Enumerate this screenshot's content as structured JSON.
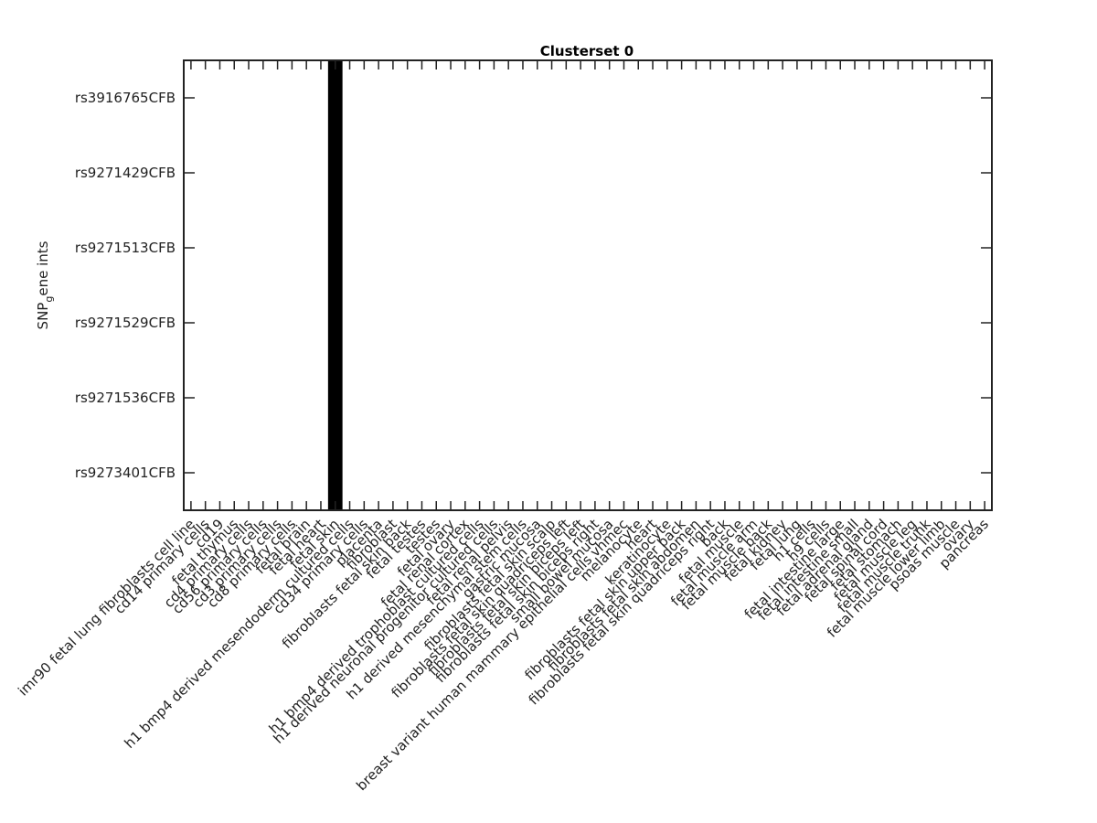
{
  "chart_data": {
    "type": "heatmap",
    "title": "Clusterset 0",
    "ylabel_parts": [
      "SNP",
      "g",
      "ene ints"
    ],
    "xlabel": "",
    "rows": [
      "rs3916765CFB",
      "rs9271429CFB",
      "rs9271513CFB",
      "rs9271529CFB",
      "rs9271536CFB",
      "rs9273401CFB"
    ],
    "columns": [
      "imr90 fetal lung fibroblasts cell line",
      "cd14 primary cells",
      "cd19",
      "fetal thymus",
      "cd4 primary cells",
      "cd56 primary cells",
      "cd3 primary cells",
      "cd8 primary cells",
      "fetal brain",
      "fetal heart",
      "fetal skin",
      "h1 bmp4 derived mesendoderm cultured cells",
      "cd34 primary cells",
      "placenta",
      "fibroblast",
      "fibroblasts fetal skin back",
      "fetal testes",
      "testes",
      "fetal ovary",
      "fetal renal cortex",
      "h1 bmp4 derived trophoblast cultured cells",
      "h1 derived neuronal progenitor cultured cells",
      "fetal renal pelvis",
      "h1 derived mesenchymal stem cells",
      "gastric mucosa",
      "fibroblasts fetal skin scalp",
      "fibroblasts fetal skin quadriceps left",
      "fibroblasts fetal skin biceps left",
      "fibroblasts fetal skin biceps right",
      "small bowel mucosa",
      "breast variant human mammary epithelial cells vhmec",
      "melanocyte",
      "heart",
      "keratinocyte",
      "fibroblasts fetal skin upper back",
      "fibroblasts fetal skin abdomen",
      "fibroblasts fetal skin quadriceps right",
      "back",
      "fetal muscle",
      "fetal muscle arm",
      "fetal muscle back",
      "fetal kidney",
      "fetal lung",
      "h1 cells",
      "h9 cells",
      "fetal intestine large",
      "fetal intestine small",
      "fetal adrenal gland",
      "fetal spinal cord",
      "fetal stomach",
      "fetal muscle leg",
      "fetal muscle trunk",
      "fetal muscle lower limb",
      "psoas muscle",
      "ovary",
      "pancreas"
    ],
    "filled_columns": [
      10
    ],
    "fill_color": "#000000",
    "background_color": "#ffffff"
  }
}
